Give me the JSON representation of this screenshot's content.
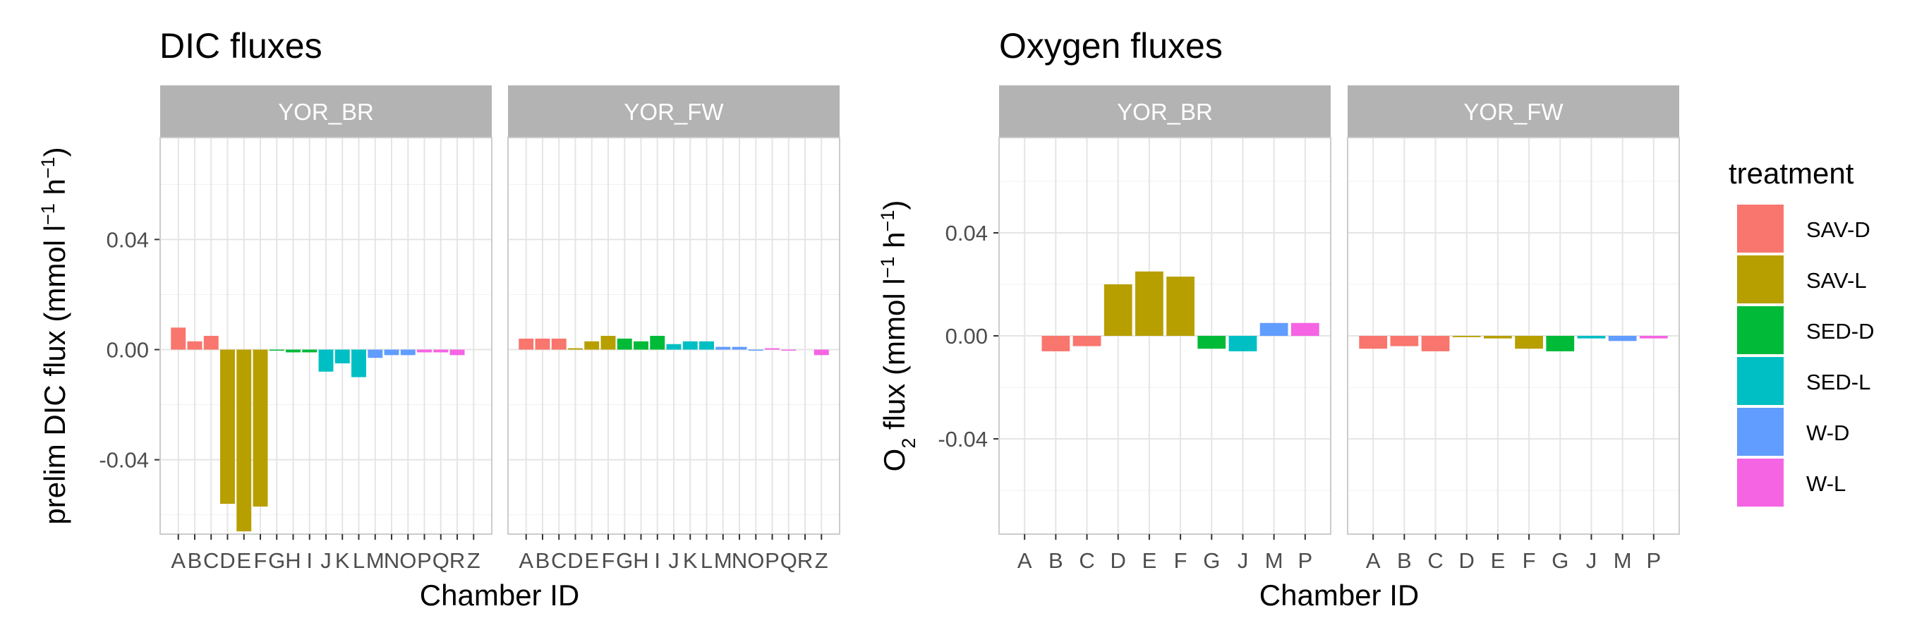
{
  "colors": {
    "SAV-D": "#F8766D",
    "SAV-L": "#B79F00",
    "SED-D": "#00BA38",
    "SED-L": "#00BFC4",
    "W-D": "#619CFF",
    "W-L": "#F564E3",
    "strip_bg": "#b3b3b3",
    "grid": "#e5e5e5",
    "panel_border": "#cccccc"
  },
  "legend": {
    "title": "treatment",
    "items": [
      "SAV-D",
      "SAV-L",
      "SED-D",
      "SED-L",
      "W-D",
      "W-L"
    ]
  },
  "chart_data": [
    {
      "type": "bar",
      "title": "DIC fluxes",
      "xlabel": "Chamber ID",
      "ylabel_parts": [
        {
          "t": "prelim DIC flux (mmol l"
        },
        {
          "t": "−1",
          "sup": true
        },
        {
          "t": " h"
        },
        {
          "t": "−1",
          "sup": true
        },
        {
          "t": ")"
        }
      ],
      "ylim": [
        -0.067,
        0.077
      ],
      "yticks": [
        -0.04,
        0.0,
        0.04
      ],
      "ytick_labels": [
        "-0.04",
        "0.00",
        "0.04"
      ],
      "grid": true,
      "categories": [
        "A",
        "B",
        "C",
        "D",
        "E",
        "F",
        "G",
        "H",
        "I",
        "J",
        "K",
        "L",
        "M",
        "N",
        "O",
        "P",
        "Q",
        "R",
        "Z"
      ],
      "facets": [
        {
          "name": "YOR_BR",
          "values": [
            0.008,
            0.003,
            0.005,
            -0.056,
            -0.066,
            -0.057,
            0.0,
            -0.001,
            -0.001,
            -0.008,
            -0.005,
            -0.01,
            -0.003,
            -0.002,
            -0.002,
            -0.001,
            -0.001,
            -0.002,
            null
          ],
          "treatments": [
            "SAV-D",
            "SAV-D",
            "SAV-D",
            "SAV-L",
            "SAV-L",
            "SAV-L",
            "SED-D",
            "SED-D",
            "SED-D",
            "SED-L",
            "SED-L",
            "SED-L",
            "W-D",
            "W-D",
            "W-D",
            "W-L",
            "W-L",
            "W-L",
            "W-L"
          ]
        },
        {
          "name": "YOR_FW",
          "values": [
            0.004,
            0.004,
            0.004,
            0.0005,
            0.003,
            0.005,
            0.004,
            0.003,
            0.005,
            0.002,
            0.003,
            0.003,
            0.001,
            0.001,
            0.0,
            0.0005,
            0.0,
            null,
            -0.002
          ],
          "treatments": [
            "SAV-D",
            "SAV-D",
            "SAV-D",
            "SAV-L",
            "SAV-L",
            "SAV-L",
            "SED-D",
            "SED-D",
            "SED-D",
            "SED-L",
            "SED-L",
            "SED-L",
            "W-D",
            "W-D",
            "W-D",
            "W-L",
            "W-L",
            "W-L",
            "W-L"
          ]
        }
      ]
    },
    {
      "type": "bar",
      "title": "Oxygen fluxes",
      "xlabel": "Chamber ID",
      "ylabel_parts": [
        {
          "t": "O"
        },
        {
          "t": "2",
          "sub": true
        },
        {
          "t": " flux (mmol l"
        },
        {
          "t": "−1",
          "sup": true
        },
        {
          "t": " h"
        },
        {
          "t": "−1",
          "sup": true
        },
        {
          "t": ")"
        }
      ],
      "ylim": [
        -0.077,
        0.077
      ],
      "yticks": [
        -0.04,
        0.0,
        0.04
      ],
      "ytick_labels": [
        "-0.04",
        "0.00",
        "0.04"
      ],
      "grid": true,
      "categories": [
        "A",
        "B",
        "C",
        "D",
        "E",
        "F",
        "G",
        "J",
        "M",
        "P"
      ],
      "facets": [
        {
          "name": "YOR_BR",
          "values": [
            null,
            -0.006,
            -0.004,
            0.02,
            0.025,
            0.023,
            -0.005,
            -0.006,
            0.005,
            0.005
          ],
          "treatments": [
            "SAV-D",
            "SAV-D",
            "SAV-D",
            "SAV-L",
            "SAV-L",
            "SAV-L",
            "SED-D",
            "SED-L",
            "W-D",
            "W-L"
          ]
        },
        {
          "name": "YOR_FW",
          "values": [
            -0.005,
            -0.004,
            -0.006,
            -0.0005,
            -0.001,
            -0.005,
            -0.006,
            -0.001,
            -0.002,
            -0.001
          ],
          "treatments": [
            "SAV-D",
            "SAV-D",
            "SAV-D",
            "SAV-L",
            "SAV-L",
            "SAV-L",
            "SED-D",
            "SED-L",
            "W-D",
            "W-L"
          ]
        }
      ]
    }
  ]
}
